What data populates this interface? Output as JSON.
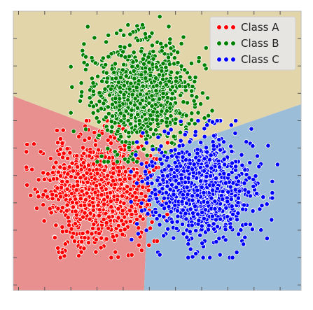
{
  "chart_data": {
    "type": "scatter",
    "xlim": [
      -5.2,
      5.8
    ],
    "ylim": [
      -5.2,
      5.0
    ],
    "grid": false,
    "legend_placement": "top-right",
    "xlabel": "",
    "ylabel": "",
    "x_ticks": [
      -5,
      -4,
      -3,
      -2,
      -1,
      0,
      1,
      2,
      3,
      4,
      5
    ],
    "y_ticks": [
      -5,
      -4,
      -3,
      -2,
      -1,
      0,
      1,
      2,
      3,
      4
    ],
    "regions": [
      {
        "class": "Class A",
        "color": "#e89090",
        "polygon": [
          [
            -5.2,
            1.9
          ],
          [
            -1.6,
            0.6
          ],
          [
            0.0,
            -0.3
          ],
          [
            -0.2,
            -5.2
          ],
          [
            -5.2,
            -5.2
          ]
        ]
      },
      {
        "class": "Class B",
        "color": "#e3d5aa",
        "polygon": [
          [
            -5.2,
            5.0
          ],
          [
            5.8,
            5.0
          ],
          [
            5.8,
            1.6
          ],
          [
            0.0,
            -0.3
          ],
          [
            -1.6,
            0.6
          ],
          [
            -5.2,
            1.9
          ]
        ]
      },
      {
        "class": "Class C",
        "color": "#9bbdd8",
        "polygon": [
          [
            5.8,
            1.6
          ],
          [
            5.8,
            -5.2
          ],
          [
            -0.2,
            -5.2
          ],
          [
            0.0,
            -0.3
          ]
        ]
      }
    ],
    "series": [
      {
        "name": "Class A",
        "color": "#ff0000",
        "center": [
          -2.0,
          -1.5
        ],
        "spread": [
          1.0,
          0.95
        ],
        "count": 1000,
        "seed": 11,
        "outliers": [
          [
            -4.3,
            -2.2
          ],
          [
            -3.5,
            0.2
          ],
          [
            -2.6,
            -3.8
          ],
          [
            -1.0,
            0.7
          ],
          [
            -4.7,
            -0.7
          ],
          [
            -1.3,
            -3.8
          ]
        ]
      },
      {
        "name": "Class B",
        "color": "#008000",
        "center": [
          -0.3,
          2.0
        ],
        "spread": [
          0.95,
          0.95
        ],
        "count": 1000,
        "seed": 29,
        "outliers": [
          [
            0.4,
            4.8
          ],
          [
            -2.5,
            3.8
          ],
          [
            1.9,
            3.3
          ],
          [
            -1.1,
            4.3
          ],
          [
            0.1,
            4.2
          ],
          [
            -2.2,
            3.3
          ]
        ]
      },
      {
        "name": "Class C",
        "color": "#0000ff",
        "center": [
          2.0,
          -1.5
        ],
        "spread": [
          1.0,
          0.95
        ],
        "count": 1000,
        "seed": 47,
        "outliers": [
          [
            4.3,
            -2.1
          ],
          [
            2.7,
            -3.9
          ],
          [
            4.9,
            -0.6
          ],
          [
            0.4,
            -3.9
          ],
          [
            3.9,
            0.7
          ],
          [
            4.5,
            -3.3
          ]
        ]
      }
    ]
  }
}
